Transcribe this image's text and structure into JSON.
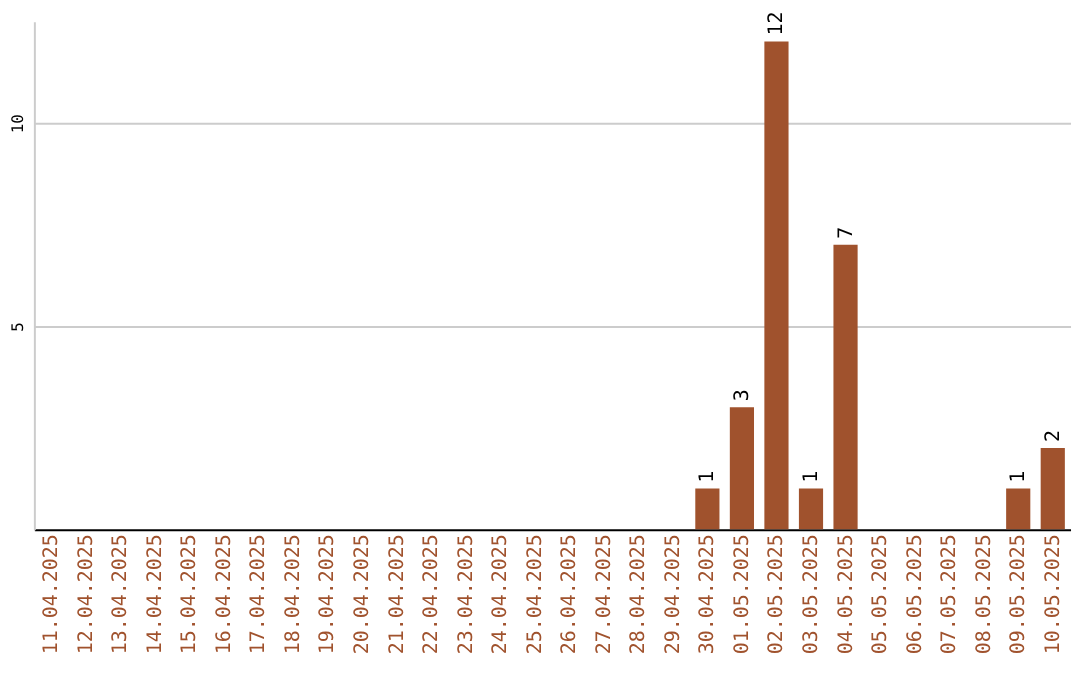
{
  "chart_data": {
    "type": "bar",
    "categories": [
      "11.04.2025",
      "12.04.2025",
      "13.04.2025",
      "14.04.2025",
      "15.04.2025",
      "16.04.2025",
      "17.04.2025",
      "18.04.2025",
      "19.04.2025",
      "20.04.2025",
      "21.04.2025",
      "22.04.2025",
      "23.04.2025",
      "24.04.2025",
      "25.04.2025",
      "26.04.2025",
      "27.04.2025",
      "28.04.2025",
      "29.04.2025",
      "30.04.2025",
      "01.05.2025",
      "02.05.2025",
      "03.05.2025",
      "04.05.2025",
      "05.05.2025",
      "06.05.2025",
      "07.05.2025",
      "08.05.2025",
      "09.05.2025",
      "10.05.2025"
    ],
    "values": [
      0,
      0,
      0,
      0,
      0,
      0,
      0,
      0,
      0,
      0,
      0,
      0,
      0,
      0,
      0,
      0,
      0,
      0,
      0,
      1,
      3,
      12,
      1,
      7,
      0,
      0,
      0,
      0,
      1,
      2
    ],
    "value_labels": [
      null,
      null,
      null,
      null,
      null,
      null,
      null,
      null,
      null,
      null,
      null,
      null,
      null,
      null,
      null,
      null,
      null,
      null,
      null,
      "1",
      "3",
      "12",
      "1",
      "7",
      null,
      null,
      null,
      null,
      "1",
      "2"
    ],
    "color": "#a0522d",
    "ylim": [
      0,
      12.5
    ],
    "yticks": [
      5,
      10
    ],
    "grid": "y"
  }
}
